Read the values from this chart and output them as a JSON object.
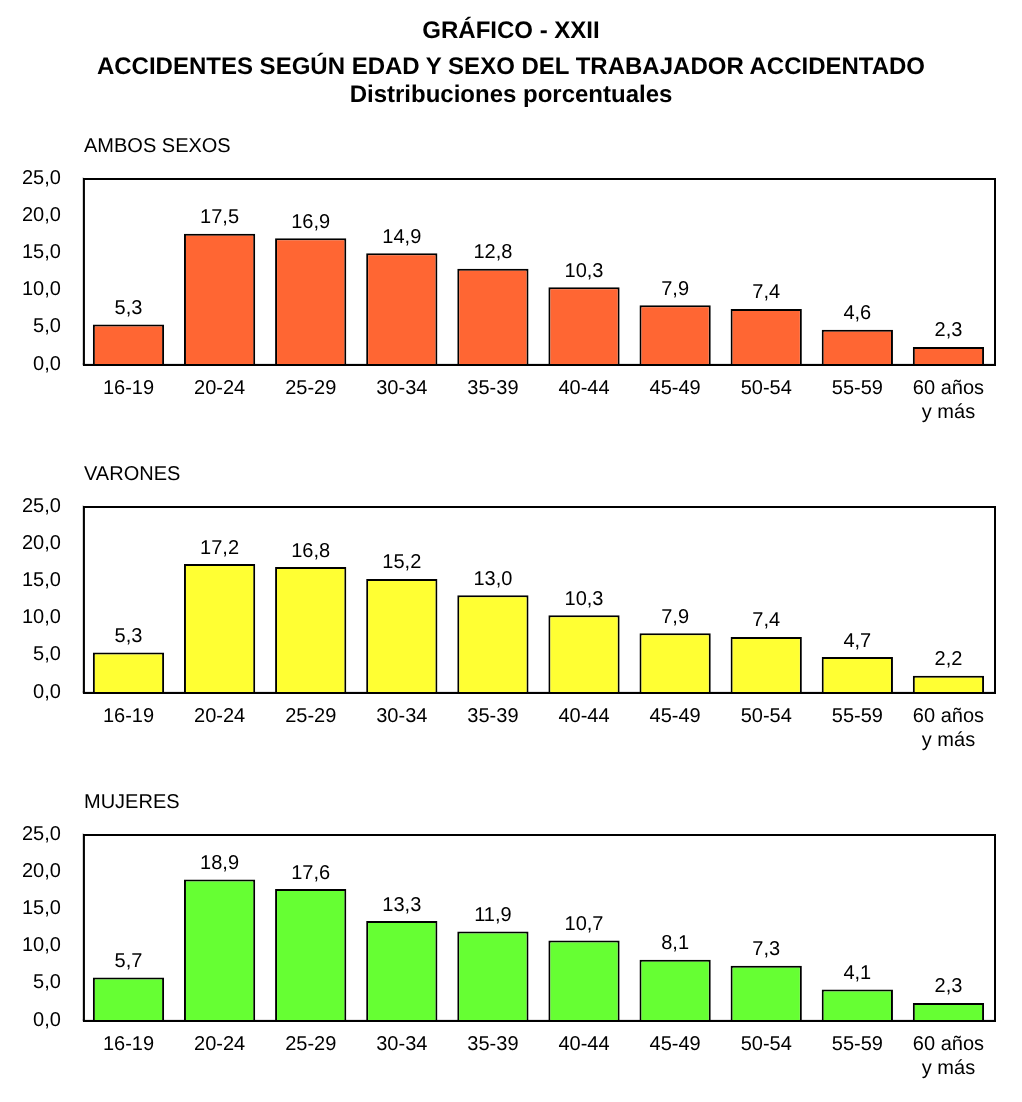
{
  "chart_data": [
    {
      "type": "bar",
      "title": "GRÁFICO - XXII",
      "subtitle": "ACCIDENTES SEGÚN EDAD Y SEXO DEL TRABAJADOR ACCIDENTADO",
      "annotations": [
        "Distribuciones porcentuales"
      ],
      "ylabel": "AMBOS SEXOS",
      "categories": [
        "16-19",
        "20-24",
        "25-29",
        "30-34",
        "35-39",
        "40-44",
        "45-49",
        "50-54",
        "55-59",
        "60 años\ny más"
      ],
      "values": [
        5.3,
        17.5,
        16.9,
        14.9,
        12.8,
        10.3,
        7.9,
        7.4,
        4.6,
        2.3
      ],
      "value_labels": [
        "5,3",
        "17,5",
        "16,9",
        "14,9",
        "12,8",
        "10,3",
        "7,9",
        "7,4",
        "4,6",
        "2,3"
      ],
      "color": "#ff6633",
      "ylim": [
        0,
        25
      ],
      "yticks": [
        {
          "value": 0,
          "label": "0,0"
        },
        {
          "value": 5,
          "label": "5,0"
        },
        {
          "value": 10,
          "label": "10,0"
        },
        {
          "value": 15,
          "label": "15,0"
        },
        {
          "value": 20,
          "label": "20,0"
        },
        {
          "value": 25,
          "label": "25,0"
        }
      ]
    },
    {
      "type": "bar",
      "ylabel": "VARONES",
      "categories": [
        "16-19",
        "20-24",
        "25-29",
        "30-34",
        "35-39",
        "40-44",
        "45-49",
        "50-54",
        "55-59",
        "60 años\ny más"
      ],
      "values": [
        5.3,
        17.2,
        16.8,
        15.2,
        13.0,
        10.3,
        7.9,
        7.4,
        4.7,
        2.2
      ],
      "value_labels": [
        "5,3",
        "17,2",
        "16,8",
        "15,2",
        "13,0",
        "10,3",
        "7,9",
        "7,4",
        "4,7",
        "2,2"
      ],
      "color": "#ffff33",
      "ylim": [
        0,
        25
      ],
      "yticks": [
        {
          "value": 0,
          "label": "0,0"
        },
        {
          "value": 5,
          "label": "5,0"
        },
        {
          "value": 10,
          "label": "10,0"
        },
        {
          "value": 15,
          "label": "15,0"
        },
        {
          "value": 20,
          "label": "20,0"
        },
        {
          "value": 25,
          "label": "25,0"
        }
      ]
    },
    {
      "type": "bar",
      "ylabel": "MUJERES",
      "categories": [
        "16-19",
        "20-24",
        "25-29",
        "30-34",
        "35-39",
        "40-44",
        "45-49",
        "50-54",
        "55-59",
        "60 años\ny más"
      ],
      "values": [
        5.7,
        18.9,
        17.6,
        13.3,
        11.9,
        10.7,
        8.1,
        7.3,
        4.1,
        2.3
      ],
      "value_labels": [
        "5,7",
        "18,9",
        "17,6",
        "13,3",
        "11,9",
        "10,7",
        "8,1",
        "7,3",
        "4,1",
        "2,3"
      ],
      "color": "#66ff33",
      "ylim": [
        0,
        25
      ],
      "yticks": [
        {
          "value": 0,
          "label": "0,0"
        },
        {
          "value": 5,
          "label": "5,0"
        },
        {
          "value": 10,
          "label": "10,0"
        },
        {
          "value": 15,
          "label": "15,0"
        },
        {
          "value": 20,
          "label": "20,0"
        },
        {
          "value": 25,
          "label": "25,0"
        }
      ]
    }
  ]
}
